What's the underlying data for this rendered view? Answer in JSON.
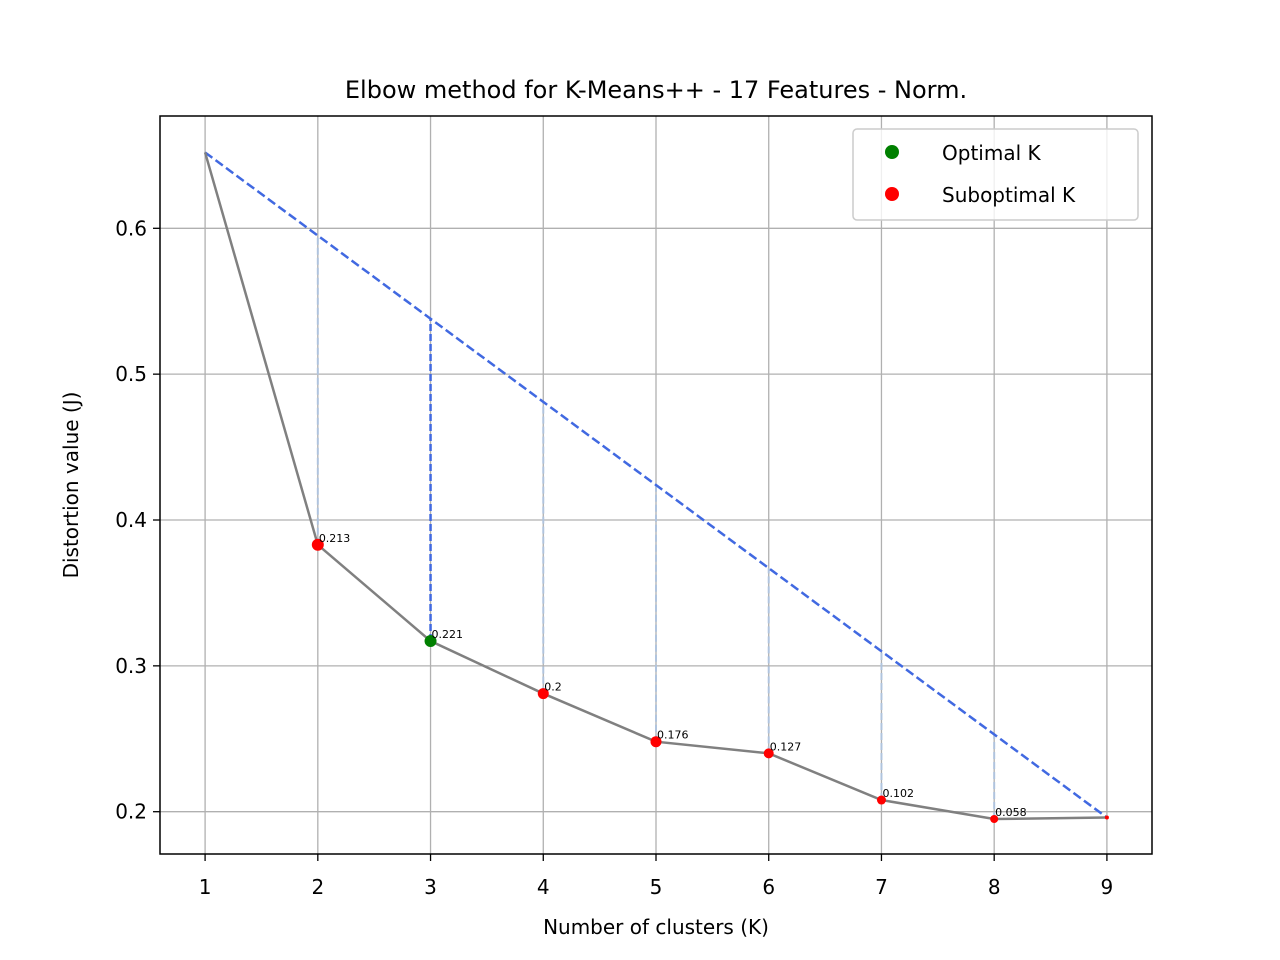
{
  "chart_data": {
    "type": "line",
    "title": "Elbow method for K-Means++ - 17 Features - Norm.",
    "xlabel": "Number of clusters (K)",
    "ylabel": "Distortion value (J)",
    "x": [
      1,
      2,
      3,
      4,
      5,
      6,
      7,
      8,
      9
    ],
    "distortion": [
      0.652,
      0.383,
      0.317,
      0.281,
      0.248,
      0.24,
      0.208,
      0.195,
      0.196
    ],
    "annotations": [
      {
        "x": 2,
        "label": "0.213"
      },
      {
        "x": 3,
        "label": "0.221"
      },
      {
        "x": 4,
        "label": "0.2"
      },
      {
        "x": 5,
        "label": "0.176"
      },
      {
        "x": 6,
        "label": "0.127"
      },
      {
        "x": 7,
        "label": "0.102"
      },
      {
        "x": 8,
        "label": "0.058"
      }
    ],
    "optimal_k": 3,
    "xlim": [
      0.6,
      9.4
    ],
    "ylim": [
      0.171,
      0.677
    ],
    "xticks": [
      "1",
      "2",
      "3",
      "4",
      "5",
      "6",
      "7",
      "8",
      "9"
    ],
    "yticks": [
      "0.2",
      "0.3",
      "0.4",
      "0.5",
      "0.6"
    ],
    "grid": true,
    "legend": {
      "placement": "upper-right",
      "entries": [
        {
          "label": "Optimal K",
          "color": "#008000"
        },
        {
          "label": "Suboptimal K",
          "color": "#ff0000"
        }
      ]
    },
    "colors": {
      "curve": "#808080",
      "chord": "#4169e1",
      "gap": "#b0c4de",
      "optimal": "#008000",
      "suboptimal": "#ff0000",
      "grid": "#b0b0b0"
    }
  }
}
